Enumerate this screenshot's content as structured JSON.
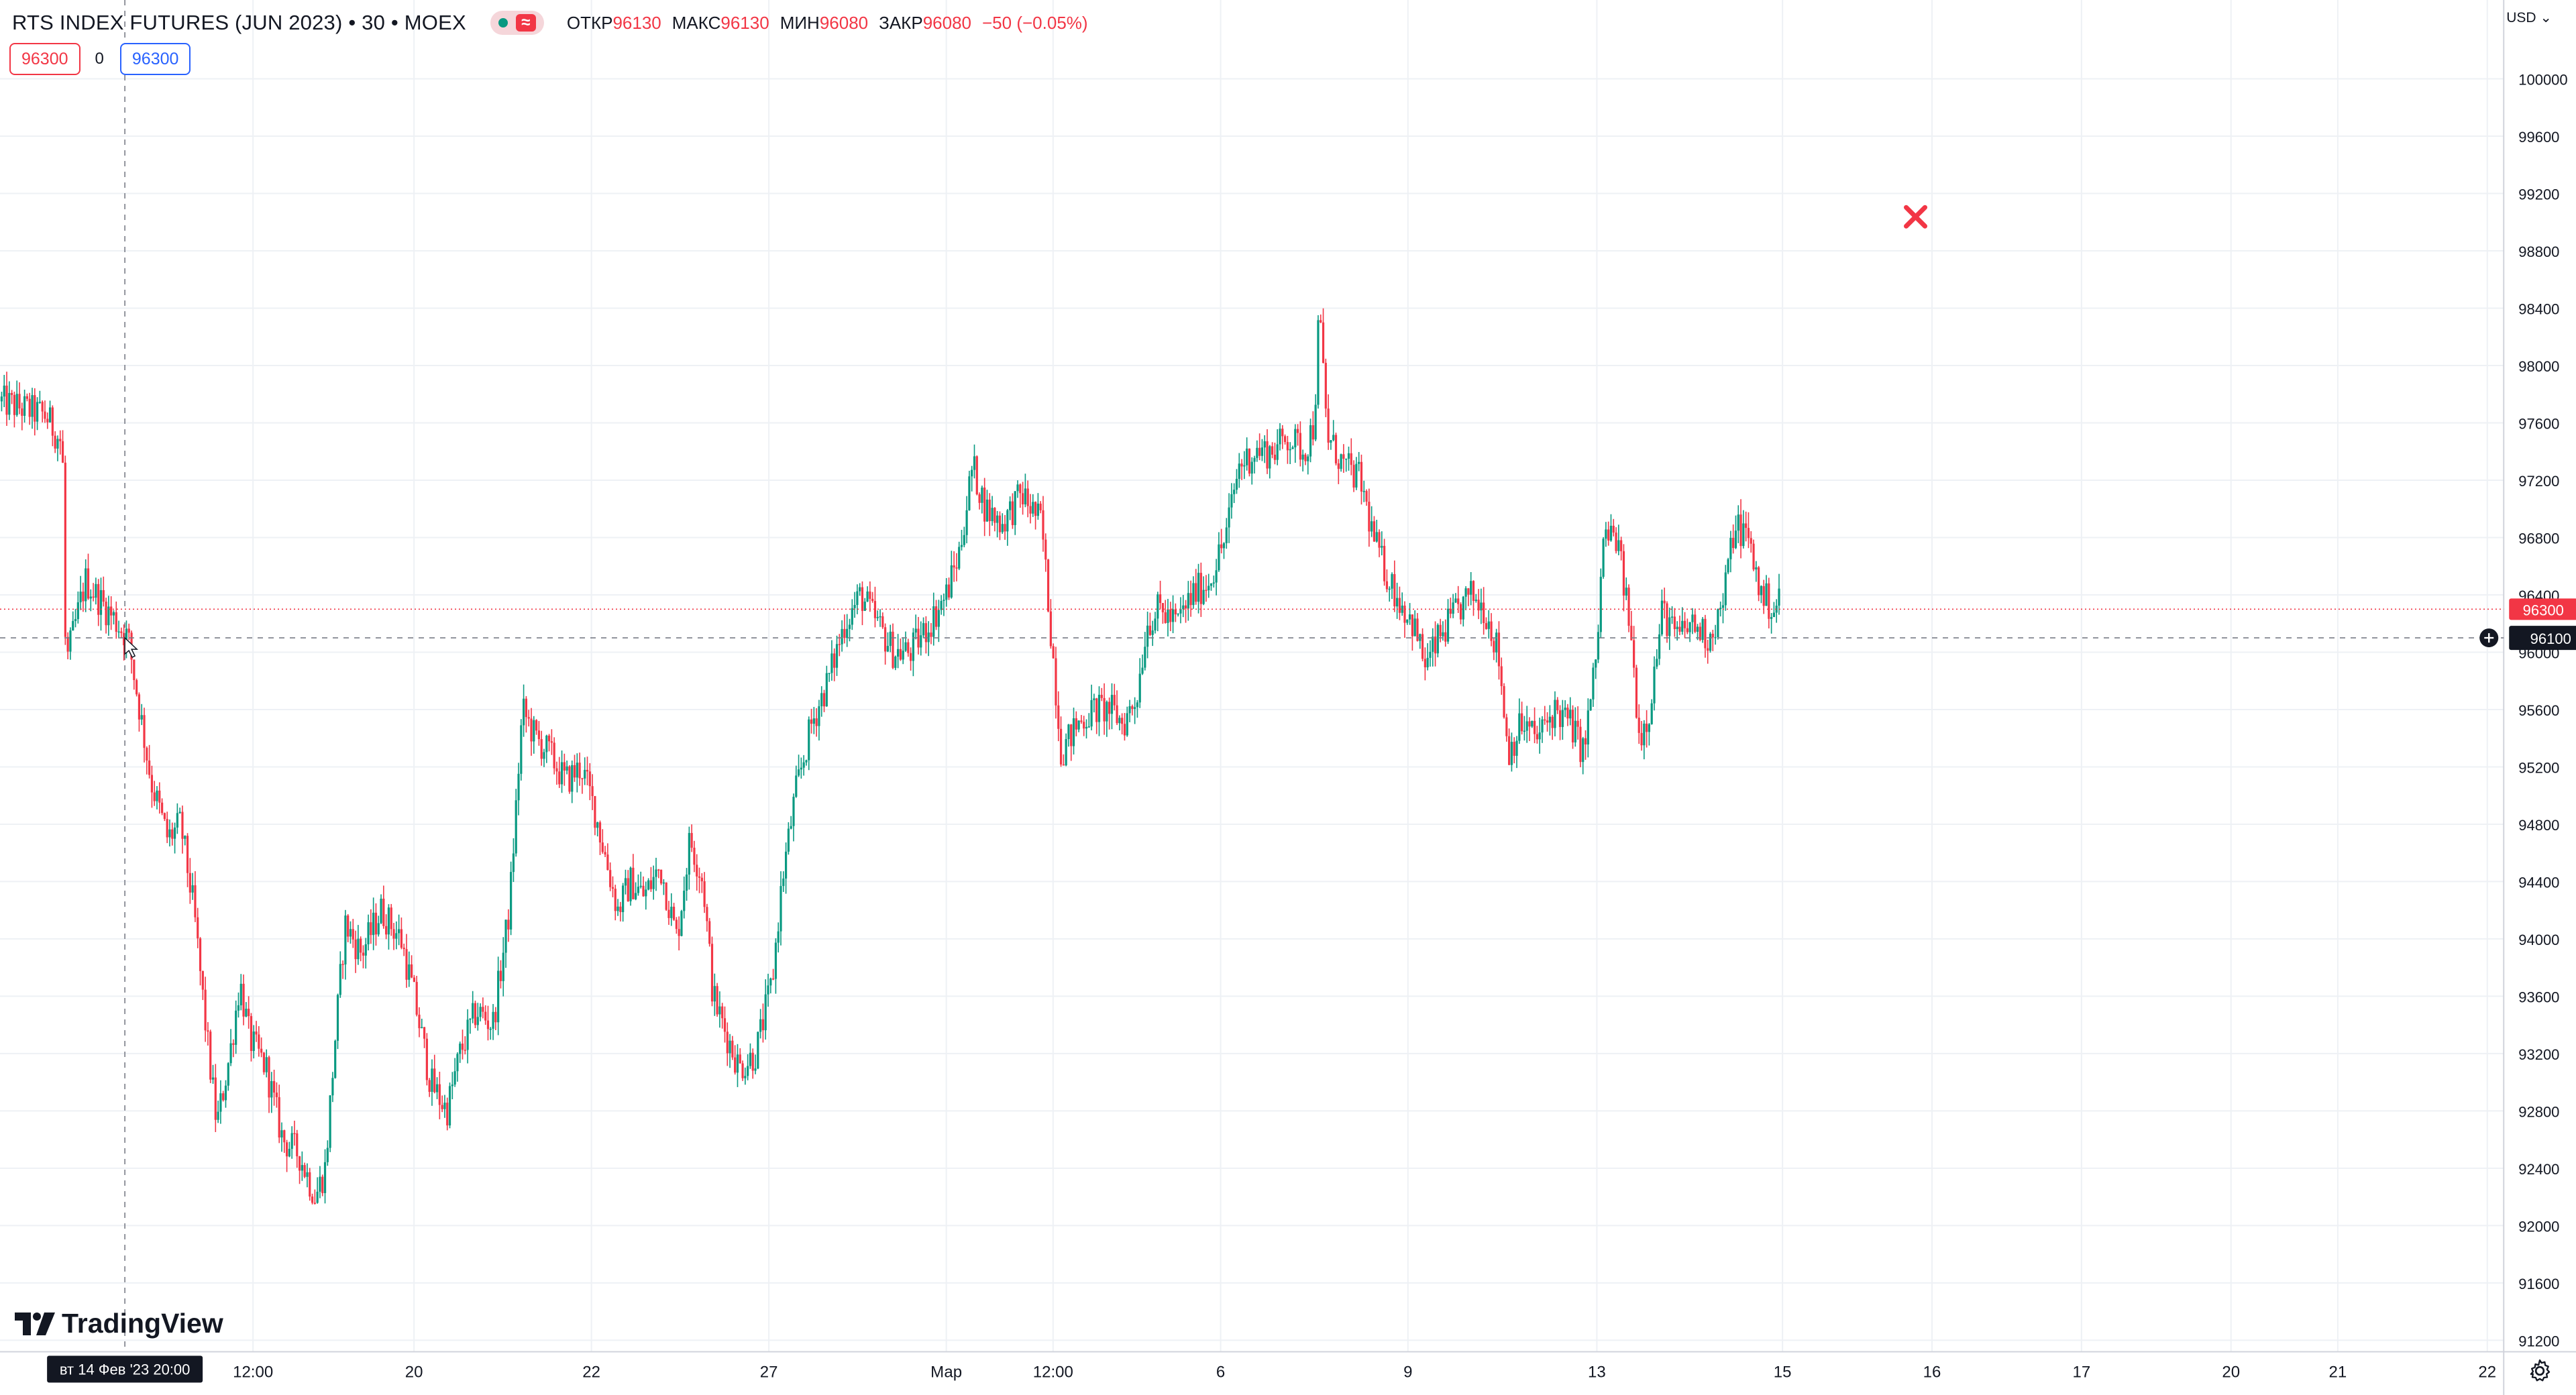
{
  "legend": {
    "title": "RTS INDEX FUTURES (JUN 2023) • 30 • MOEX",
    "open_label": "ОТКР",
    "open": "96130",
    "high_label": "МАКС",
    "high": "96130",
    "low_label": "МИН",
    "low": "96080",
    "close_label": "ЗАКР",
    "close": "96080",
    "change": "−50 (−0.05%)"
  },
  "trade": {
    "sell": "96300",
    "spread": "0",
    "buy": "96300"
  },
  "currency": "USD",
  "last_price_label": "96300",
  "crosshair": {
    "price_label": "96100",
    "time_label": "вт 14 Фев '23   20:00"
  },
  "branding": {
    "logo_text": "TradingView",
    "logo_icon": "tradingview-logo-icon"
  },
  "colors": {
    "up": "#089981",
    "down": "#f23645",
    "grid": "#eef1f5",
    "text": "#131722",
    "crosshair_bg": "#131722"
  },
  "chart_data": {
    "type": "candlestick",
    "title": "RTS INDEX FUTURES (JUN 2023) • 30 • MOEX",
    "y_ticks": [
      100000,
      99600,
      99200,
      98800,
      98400,
      98000,
      97600,
      97200,
      96800,
      96400,
      96000,
      95600,
      95200,
      94800,
      94400,
      94000,
      93600,
      93200,
      92800,
      92400,
      92000,
      91600,
      91200
    ],
    "ylim": [
      91150,
      100250
    ],
    "x_ticks": [
      "12:00",
      "20",
      "22",
      "27",
      "Мар",
      "12:00",
      "6",
      "9",
      "13",
      "15",
      "16",
      "17",
      "20",
      "21",
      "22"
    ],
    "last_price": 96300,
    "crosshair_price": 96100,
    "grid": true,
    "approximate_path": [
      [
        0,
        97750
      ],
      [
        28,
        97650
      ],
      [
        38,
        97450
      ],
      [
        40,
        95900
      ],
      [
        52,
        96500
      ],
      [
        65,
        96300
      ],
      [
        78,
        96100
      ],
      [
        92,
        95100
      ],
      [
        102,
        94700
      ],
      [
        110,
        94800
      ],
      [
        118,
        94200
      ],
      [
        126,
        93300
      ],
      [
        132,
        92700
      ],
      [
        140,
        93200
      ],
      [
        146,
        93700
      ],
      [
        152,
        93300
      ],
      [
        162,
        93100
      ],
      [
        172,
        92600
      ],
      [
        182,
        92500
      ],
      [
        192,
        92200
      ],
      [
        198,
        92400
      ],
      [
        204,
        93300
      ],
      [
        210,
        94100
      ],
      [
        220,
        93900
      ],
      [
        232,
        94200
      ],
      [
        244,
        94000
      ],
      [
        252,
        93600
      ],
      [
        262,
        93000
      ],
      [
        272,
        92800
      ],
      [
        280,
        93200
      ],
      [
        290,
        93500
      ],
      [
        300,
        93400
      ],
      [
        310,
        94200
      ],
      [
        318,
        95600
      ],
      [
        326,
        95400
      ],
      [
        334,
        95300
      ],
      [
        344,
        95100
      ],
      [
        354,
        95200
      ],
      [
        362,
        94900
      ],
      [
        368,
        94600
      ],
      [
        376,
        94200
      ],
      [
        384,
        94400
      ],
      [
        392,
        94300
      ],
      [
        402,
        94500
      ],
      [
        412,
        94000
      ],
      [
        420,
        94700
      ],
      [
        428,
        94400
      ],
      [
        434,
        93600
      ],
      [
        440,
        93400
      ],
      [
        450,
        93100
      ],
      [
        460,
        93200
      ],
      [
        470,
        93700
      ],
      [
        476,
        94400
      ],
      [
        484,
        95000
      ],
      [
        494,
        95500
      ],
      [
        504,
        95800
      ],
      [
        514,
        96200
      ],
      [
        524,
        96400
      ],
      [
        534,
        96200
      ],
      [
        544,
        96000
      ],
      [
        554,
        96000
      ],
      [
        566,
        96200
      ],
      [
        576,
        96400
      ],
      [
        584,
        96700
      ],
      [
        592,
        97300
      ],
      [
        600,
        97000
      ],
      [
        610,
        96900
      ],
      [
        622,
        97100
      ],
      [
        634,
        96900
      ],
      [
        640,
        96100
      ],
      [
        646,
        95300
      ],
      [
        656,
        95500
      ],
      [
        666,
        95600
      ],
      [
        676,
        95600
      ],
      [
        684,
        95500
      ],
      [
        692,
        95700
      ],
      [
        698,
        96200
      ],
      [
        706,
        96300
      ],
      [
        716,
        96200
      ],
      [
        726,
        96400
      ],
      [
        736,
        96500
      ],
      [
        746,
        96800
      ],
      [
        754,
        97300
      ],
      [
        764,
        97400
      ],
      [
        774,
        97400
      ],
      [
        784,
        97500
      ],
      [
        794,
        97400
      ],
      [
        800,
        97600
      ],
      [
        803,
        98400
      ],
      [
        808,
        97500
      ],
      [
        818,
        97300
      ],
      [
        828,
        97200
      ],
      [
        836,
        96800
      ],
      [
        842,
        96600
      ],
      [
        850,
        96400
      ],
      [
        860,
        96200
      ],
      [
        868,
        95900
      ],
      [
        876,
        96100
      ],
      [
        888,
        96300
      ],
      [
        896,
        96400
      ],
      [
        904,
        96300
      ],
      [
        912,
        96000
      ],
      [
        918,
        95300
      ],
      [
        926,
        95500
      ],
      [
        936,
        95400
      ],
      [
        946,
        95600
      ],
      [
        956,
        95500
      ],
      [
        964,
        95300
      ],
      [
        972,
        96000
      ],
      [
        976,
        96800
      ],
      [
        984,
        96800
      ],
      [
        992,
        96200
      ],
      [
        998,
        95400
      ],
      [
        1004,
        95600
      ],
      [
        1012,
        96300
      ],
      [
        1020,
        96100
      ],
      [
        1030,
        96200
      ],
      [
        1040,
        96100
      ],
      [
        1048,
        96300
      ],
      [
        1056,
        96900
      ],
      [
        1064,
        96800
      ],
      [
        1072,
        96400
      ],
      [
        1080,
        96300
      ],
      [
        1084,
        96400
      ]
    ]
  }
}
